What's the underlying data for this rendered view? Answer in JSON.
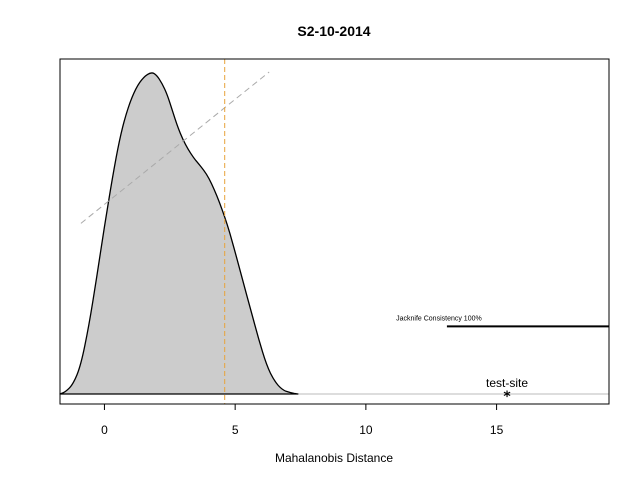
{
  "chart_data": {
    "type": "area",
    "title": "S2-10-2014",
    "xlabel": "Mahalanobis Distance",
    "ylabel": "",
    "xlim": [
      -1.7,
      19.3
    ],
    "ylim": [
      0,
      1
    ],
    "x_ticks": [
      0,
      5,
      10,
      15
    ],
    "x_tick_labels": [
      "0",
      "5",
      "10",
      "15"
    ],
    "grid": false,
    "density_curve": {
      "x": [
        -1.7,
        -1.5,
        -1.2,
        -0.9,
        -0.6,
        -0.3,
        0.0,
        0.3,
        0.6,
        0.9,
        1.2,
        1.5,
        1.8,
        2.0,
        2.2,
        2.4,
        2.6,
        2.8,
        3.0,
        3.2,
        3.4,
        3.6,
        3.8,
        4.0,
        4.2,
        4.4,
        4.6,
        4.8,
        5.0,
        5.3,
        5.6,
        5.9,
        6.2,
        6.5,
        6.8,
        7.1,
        7.4
      ],
      "y": [
        0.0,
        0.006,
        0.03,
        0.09,
        0.21,
        0.36,
        0.52,
        0.67,
        0.8,
        0.89,
        0.95,
        0.985,
        1.0,
        0.99,
        0.965,
        0.93,
        0.88,
        0.83,
        0.79,
        0.76,
        0.735,
        0.715,
        0.695,
        0.67,
        0.635,
        0.595,
        0.55,
        0.5,
        0.44,
        0.35,
        0.26,
        0.17,
        0.09,
        0.04,
        0.013,
        0.004,
        0.0
      ]
    },
    "threshold_line": {
      "x": 4.6,
      "color": "#E8A33A",
      "style": "dashed"
    },
    "reference_line": {
      "x": [
        -0.9,
        6.3
      ],
      "y": [
        0.53,
        1.0
      ],
      "color": "#aaaaaa",
      "style": "dashed"
    },
    "jackknife": {
      "label": "Jacknife Consistency 100%",
      "x_start": 13.1,
      "y": 0.21
    },
    "test_site": {
      "label": "test-site",
      "x": 15.4,
      "marker": "*"
    },
    "fill_color": "#cccccc"
  }
}
